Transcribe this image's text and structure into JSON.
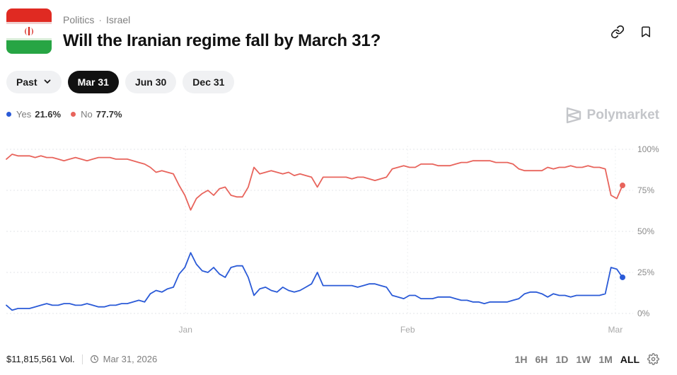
{
  "header": {
    "breadcrumb": [
      "Politics",
      "Israel"
    ],
    "title": "Will the Iranian regime fall by March 31?"
  },
  "date_pills": [
    {
      "label": "Past",
      "dropdown": true,
      "active": false
    },
    {
      "label": "Mar 31",
      "active": true
    },
    {
      "label": "Jun 30",
      "active": false
    },
    {
      "label": "Dec 31",
      "active": false
    }
  ],
  "legend": [
    {
      "name": "Yes",
      "value": "21.6%",
      "color": "#2a5ad7"
    },
    {
      "name": "No",
      "value": "77.7%",
      "color": "#e8645c"
    }
  ],
  "brand": "Polymarket",
  "footer": {
    "volume": "$11,815,561 Vol.",
    "end_date": "Mar 31, 2026"
  },
  "time_ranges": [
    {
      "label": "1H",
      "active": false
    },
    {
      "label": "6H",
      "active": false
    },
    {
      "label": "1D",
      "active": false
    },
    {
      "label": "1W",
      "active": false
    },
    {
      "label": "1M",
      "active": false
    },
    {
      "label": "ALL",
      "active": true
    }
  ],
  "icons": [
    "link-icon",
    "bookmark-icon",
    "chevron-down-icon",
    "clock-icon",
    "gear-icon",
    "polymarket-logo-icon"
  ],
  "chart_data": {
    "type": "line",
    "x_ticks": [
      "Jan",
      "Feb",
      "Mar"
    ],
    "x_tick_positions": [
      25,
      56,
      85
    ],
    "y_ticks": [
      "100%",
      "75%",
      "50%",
      "25%",
      "0%"
    ],
    "ylim": [
      0,
      100
    ],
    "xlim": [
      0,
      86
    ],
    "grid": true,
    "series": [
      {
        "name": "Yes",
        "color": "#2a5ad7",
        "end_marker": true,
        "values": [
          5,
          2,
          3,
          3,
          3,
          4,
          5,
          6,
          5,
          5,
          6,
          6,
          5,
          5,
          6,
          5,
          4,
          4,
          5,
          5,
          6,
          6,
          7,
          8,
          7,
          12,
          14,
          13,
          15,
          16,
          24,
          28,
          37,
          30,
          26,
          25,
          28,
          24,
          22,
          28,
          29,
          29,
          22,
          11,
          15,
          16,
          14,
          13,
          16,
          14,
          13,
          14,
          16,
          18,
          25,
          17,
          17,
          17,
          17,
          17,
          17,
          16,
          17,
          18,
          18,
          17,
          16,
          11,
          10,
          9,
          11,
          11,
          9,
          9,
          9,
          10,
          10,
          10,
          9,
          8,
          8,
          7,
          7,
          6,
          7,
          7,
          7,
          7,
          8,
          9,
          12,
          13,
          13,
          12,
          10,
          12,
          11,
          11,
          10,
          11,
          11,
          11,
          11,
          11,
          12,
          28,
          27,
          22
        ]
      },
      {
        "name": "No",
        "color": "#e8645c",
        "end_marker": true,
        "values": [
          94,
          97,
          96,
          96,
          96,
          95,
          96,
          95,
          95,
          94,
          93,
          94,
          95,
          94,
          93,
          94,
          95,
          95,
          95,
          94,
          94,
          94,
          93,
          92,
          91,
          89,
          86,
          87,
          86,
          85,
          78,
          72,
          63,
          70,
          73,
          75,
          72,
          76,
          77,
          72,
          71,
          71,
          77,
          89,
          85,
          86,
          87,
          86,
          85,
          86,
          84,
          85,
          84,
          83,
          77,
          83,
          83,
          83,
          83,
          83,
          82,
          83,
          83,
          82,
          81,
          82,
          83,
          88,
          89,
          90,
          89,
          89,
          91,
          91,
          91,
          90,
          90,
          90,
          91,
          92,
          92,
          93,
          93,
          93,
          93,
          92,
          92,
          92,
          91,
          88,
          87,
          87,
          87,
          87,
          89,
          88,
          89,
          89,
          90,
          89,
          89,
          90,
          89,
          89,
          88,
          72,
          70,
          78
        ]
      }
    ]
  }
}
